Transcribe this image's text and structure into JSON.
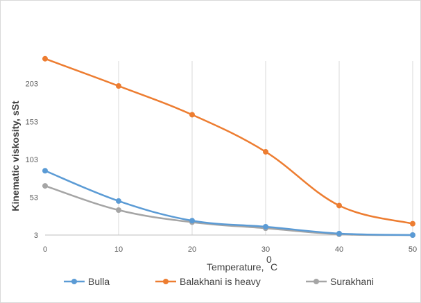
{
  "chart_data": {
    "type": "line",
    "xlabel": "Temperature,",
    "xlabel_unit": "C",
    "xlabel_degree": "0",
    "ylabel": "Kinematic viskosity, sSt",
    "x": [
      0,
      10,
      20,
      30,
      40,
      50
    ],
    "x_ticks": [
      "0",
      "10",
      "20",
      "30",
      "40",
      "50"
    ],
    "y_ticks": [
      "3",
      "53",
      "103",
      "153",
      "203"
    ],
    "xlim": [
      0,
      50
    ],
    "ylim": [
      3,
      233
    ],
    "grid": "vertical",
    "legend_position": "bottom",
    "series": [
      {
        "name": "Bulla",
        "color": "#5b9bd5",
        "values": [
          88,
          48,
          22,
          14,
          5,
          3
        ]
      },
      {
        "name": "Balakhani is heavy",
        "color": "#ed7d31",
        "values": [
          236,
          200,
          162,
          113,
          42,
          18
        ]
      },
      {
        "name": "Surakhani",
        "color": "#a5a5a5",
        "values": [
          68,
          36,
          20,
          12,
          4,
          3
        ]
      }
    ]
  }
}
